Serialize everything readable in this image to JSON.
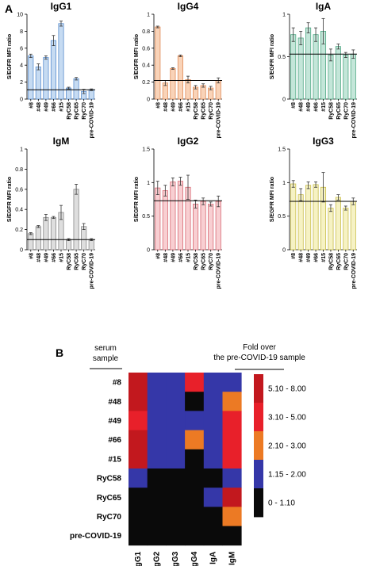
{
  "panel_a_label": "A",
  "panel_b_label": "B",
  "chart_data": [
    {
      "type": "bar",
      "title": "IgG1",
      "ylabel": "S/EGFR MFI ratio",
      "categories": [
        "#8",
        "#48",
        "#49",
        "#66",
        "#15",
        "RyC58",
        "RyC65",
        "RyC70",
        "pre-COVID-19"
      ],
      "values": [
        5.1,
        3.8,
        4.9,
        6.9,
        8.9,
        1.3,
        2.4,
        0.9,
        1.1
      ],
      "errors": [
        0.2,
        0.35,
        0.2,
        0.6,
        0.3,
        0.1,
        0.15,
        0.25,
        0.1
      ],
      "ylim": [
        0,
        10
      ],
      "yticks": [
        0,
        2,
        4,
        6,
        8,
        10
      ],
      "reference_line": 1.1,
      "fill": "#c6dbf2",
      "stroke": "#5b8fcf"
    },
    {
      "type": "bar",
      "title": "IgG4",
      "ylabel": "S/EGFR MFI ratio",
      "categories": [
        "#8",
        "#48",
        "#49",
        "#66",
        "#15",
        "RyC58",
        "RyC65",
        "RyC70",
        "pre-COVID-19"
      ],
      "values": [
        0.85,
        0.19,
        0.36,
        0.51,
        0.23,
        0.14,
        0.16,
        0.13,
        0.22
      ],
      "errors": [
        0.01,
        0.03,
        0.01,
        0.01,
        0.04,
        0.02,
        0.02,
        0.02,
        0.03
      ],
      "ylim": [
        0,
        1.0
      ],
      "yticks": [
        0.0,
        0.2,
        0.4,
        0.6,
        0.8,
        1.0
      ],
      "reference_line": 0.22,
      "fill": "#f9d3b8",
      "stroke": "#e08c5a"
    },
    {
      "type": "bar",
      "title": "IgA",
      "ylabel": "S/EGFR MFI ratio",
      "categories": [
        "#8",
        "#48",
        "#49",
        "#66",
        "#15",
        "RyC58",
        "RyC65",
        "RyC70",
        "pre-COVID-19"
      ],
      "values": [
        0.76,
        0.72,
        0.84,
        0.76,
        0.8,
        0.52,
        0.62,
        0.52,
        0.53
      ],
      "errors": [
        0.08,
        0.08,
        0.06,
        0.08,
        0.15,
        0.07,
        0.03,
        0.03,
        0.05
      ],
      "ylim": [
        0,
        1.0
      ],
      "yticks": [
        0.0,
        0.5,
        1.0
      ],
      "reference_line": 0.53,
      "fill": "#c4e6d9",
      "stroke": "#4fa884"
    },
    {
      "type": "bar",
      "title": "IgM",
      "ylabel": "S/EGFR MFI ratio",
      "categories": [
        "#8",
        "#48",
        "#49",
        "#66",
        "#15",
        "RyC58",
        "RyC65",
        "RyC70",
        "pre-COVID-19"
      ],
      "values": [
        0.16,
        0.23,
        0.32,
        0.32,
        0.37,
        0.1,
        0.6,
        0.23,
        0.1
      ],
      "errors": [
        0.01,
        0.01,
        0.03,
        0.01,
        0.07,
        0.01,
        0.05,
        0.03,
        0.01
      ],
      "ylim": [
        0,
        1.0
      ],
      "yticks": [
        0.0,
        0.2,
        0.4,
        0.6,
        0.8,
        1.0
      ],
      "reference_line": 0.1,
      "fill": "#dedede",
      "stroke": "#8a8a8a"
    },
    {
      "type": "bar",
      "title": "IgG2",
      "ylabel": "S/EGFR MFI ratio",
      "categories": [
        "#8",
        "#48",
        "#49",
        "#66",
        "#15",
        "RyC58",
        "RyC65",
        "RyC70",
        "pre-COVID-19"
      ],
      "values": [
        0.92,
        0.88,
        1.01,
        1.02,
        0.93,
        0.68,
        0.72,
        0.68,
        0.72
      ],
      "errors": [
        0.1,
        0.08,
        0.06,
        0.06,
        0.18,
        0.06,
        0.05,
        0.03,
        0.08
      ],
      "ylim": [
        0,
        1.5
      ],
      "yticks": [
        0.0,
        0.5,
        1.0,
        1.5
      ],
      "reference_line": 0.73,
      "fill": "#f8cfd2",
      "stroke": "#d86a74"
    },
    {
      "type": "bar",
      "title": "IgG3",
      "ylabel": "S/EGFR MFI ratio",
      "categories": [
        "#8",
        "#48",
        "#49",
        "#66",
        "#15",
        "RyC58",
        "RyC65",
        "RyC70",
        "pre-COVID-19"
      ],
      "values": [
        0.98,
        0.82,
        0.96,
        0.97,
        0.93,
        0.62,
        0.78,
        0.62,
        0.72
      ],
      "errors": [
        0.05,
        0.09,
        0.05,
        0.04,
        0.22,
        0.05,
        0.04,
        0.03,
        0.05
      ],
      "ylim": [
        0,
        1.5
      ],
      "yticks": [
        0.0,
        0.5,
        1.0,
        1.5
      ],
      "reference_line": 0.72,
      "fill": "#f6f2c4",
      "stroke": "#c9be4a"
    },
    {
      "type": "heatmap",
      "row_header": [
        "serum",
        "sample"
      ],
      "legend_title": [
        "Fold over",
        "the pre-COVID-19 sample"
      ],
      "rows": [
        "#8",
        "#48",
        "#49",
        "#66",
        "#15",
        "RyC58",
        "RyC65",
        "RyC70",
        "pre-COVID-19"
      ],
      "columns": [
        "IgG1",
        "IgG2",
        "IgG3",
        "IgG4",
        "IgA",
        "IgM"
      ],
      "matrix": [
        [
          4,
          1,
          1,
          3,
          1,
          1
        ],
        [
          4,
          1,
          1,
          0,
          1,
          2
        ],
        [
          3,
          1,
          1,
          1,
          1,
          3
        ],
        [
          4,
          1,
          1,
          2,
          1,
          3
        ],
        [
          4,
          1,
          1,
          0,
          1,
          3
        ],
        [
          1,
          0,
          0,
          0,
          0,
          1
        ],
        [
          0,
          0,
          0,
          0,
          1,
          4
        ],
        [
          0,
          0,
          0,
          0,
          0,
          2
        ],
        [
          0,
          0,
          0,
          0,
          0,
          0
        ]
      ],
      "legend": [
        {
          "label": "5.10 - 8.00",
          "color": "#c2181e"
        },
        {
          "label": "3.10 - 5.00",
          "color": "#e8202a"
        },
        {
          "label": "2.10 - 3.00",
          "color": "#ec7a24"
        },
        {
          "label": "1.15 - 2.00",
          "color": "#3537a8"
        },
        {
          "label": "0 - 1.10",
          "color": "#0a0a0a"
        }
      ]
    }
  ]
}
